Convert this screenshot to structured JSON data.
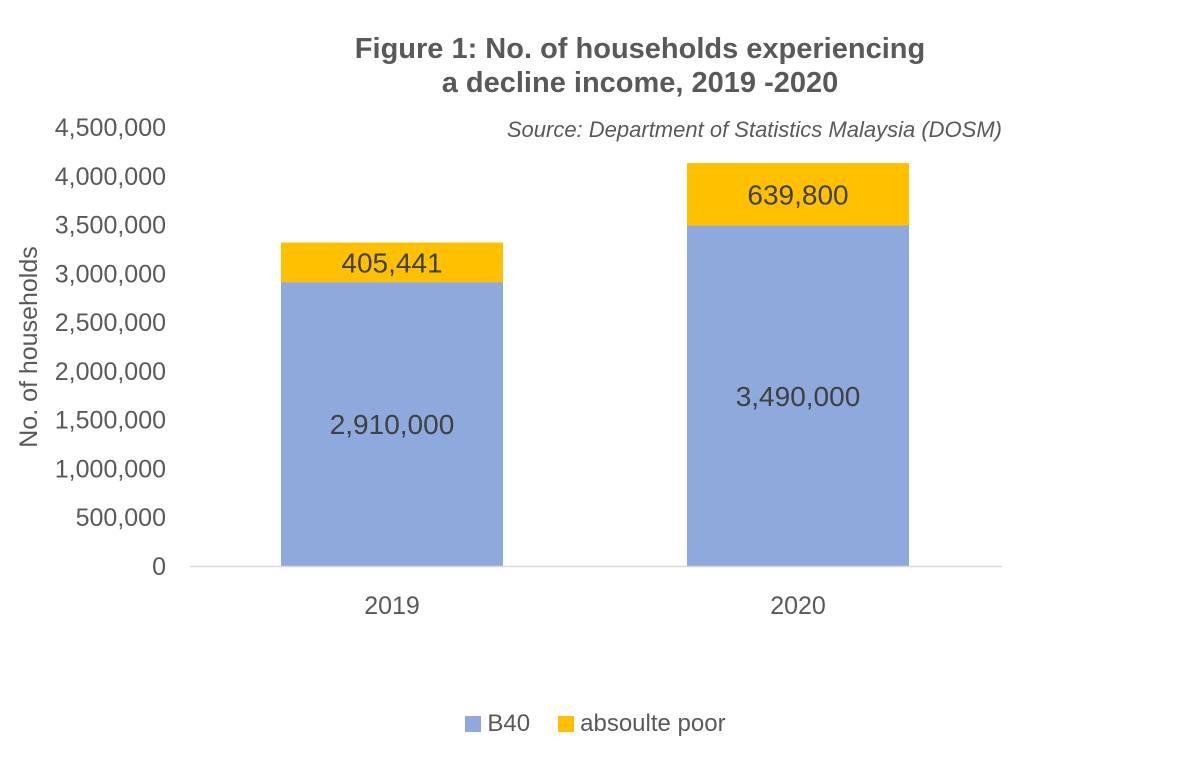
{
  "chart_data": {
    "type": "bar",
    "stacked": true,
    "title": "Figure 1: No. of households experiencing a decline income, 2019 -2020",
    "title_lines": [
      "Figure 1: No. of households experiencing",
      "a decline income, 2019 -2020"
    ],
    "subtitle": "Source: Department of Statistics Malaysia (DOSM)",
    "xlabel": "",
    "ylabel": "No. of households",
    "ylim": [
      0,
      4500000
    ],
    "yticks": [
      "0",
      "500,000",
      "1,000,000",
      "1,500,000",
      "2,000,000",
      "2,500,000",
      "3,000,000",
      "3,500,000",
      "4,000,000",
      "4,500,000"
    ],
    "grid": false,
    "legend_position": "bottom",
    "categories": [
      "2019",
      "2020"
    ],
    "series": [
      {
        "name": "B40",
        "values": [
          2910000,
          3490000
        ],
        "labels": [
          "2,910,000",
          "3,490,000"
        ],
        "color": "#8EA9DB"
      },
      {
        "name": "absoulte poor",
        "values": [
          405441,
          639800
        ],
        "labels": [
          "405,441",
          "639,800"
        ],
        "color": "#FFC000"
      }
    ]
  }
}
